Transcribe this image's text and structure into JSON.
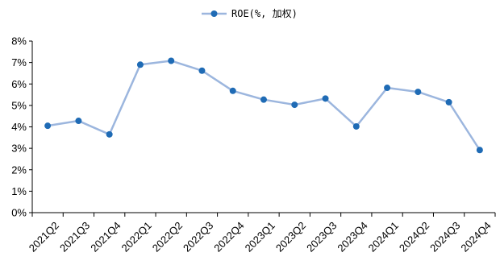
{
  "chart_data": {
    "type": "line",
    "title": "",
    "xlabel": "",
    "ylabel": "",
    "categories": [
      "2021Q2",
      "2021Q3",
      "2021Q4",
      "2022Q1",
      "2022Q2",
      "2022Q3",
      "2022Q4",
      "2023Q1",
      "2023Q2",
      "2023Q3",
      "2023Q4",
      "2024Q1",
      "2024Q2",
      "2024Q3",
      "2024Q4"
    ],
    "series": [
      {
        "name": "ROE(%, 加权)",
        "values": [
          4.05,
          4.28,
          3.65,
          6.9,
          7.08,
          6.62,
          5.68,
          5.27,
          5.03,
          5.32,
          4.02,
          5.82,
          5.63,
          5.15,
          2.92
        ],
        "line_color": "#9cb6de",
        "marker_color": "#1f6bb5"
      }
    ],
    "y_ticks": [
      "0%",
      "1%",
      "2%",
      "3%",
      "4%",
      "5%",
      "6%",
      "7%",
      "8%"
    ],
    "ylim": [
      0,
      8
    ],
    "y_unit": "%",
    "grid": false,
    "legend_position": "top-center"
  }
}
